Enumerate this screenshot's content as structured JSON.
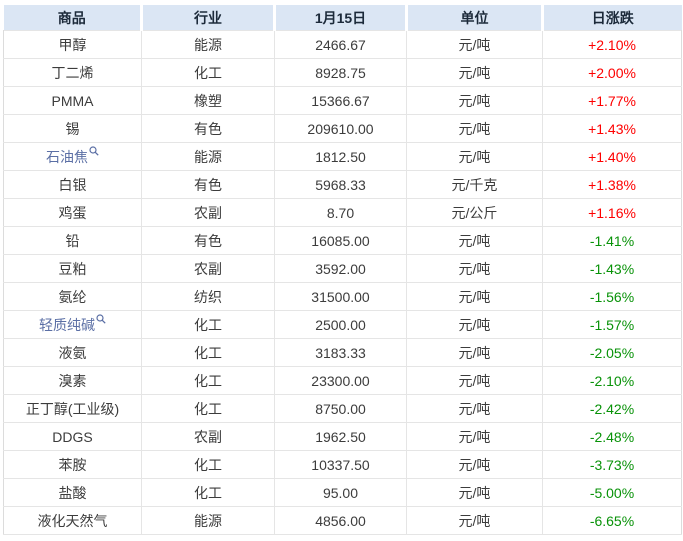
{
  "table": {
    "columns": [
      {
        "label": "商品"
      },
      {
        "label": "行业"
      },
      {
        "label": "1月15日"
      },
      {
        "label": "单位"
      },
      {
        "label": "日涨跌"
      }
    ],
    "rows": [
      {
        "commodity": "甲醇",
        "industry": "能源",
        "price": "2466.67",
        "unit": "元/吨",
        "change": "+2.10%",
        "direction": "up",
        "has_search_icon": false
      },
      {
        "commodity": "丁二烯",
        "industry": "化工",
        "price": "8928.75",
        "unit": "元/吨",
        "change": "+2.00%",
        "direction": "up",
        "has_search_icon": false
      },
      {
        "commodity": "PMMA",
        "industry": "橡塑",
        "price": "15366.67",
        "unit": "元/吨",
        "change": "+1.77%",
        "direction": "up",
        "has_search_icon": false
      },
      {
        "commodity": "锡",
        "industry": "有色",
        "price": "209610.00",
        "unit": "元/吨",
        "change": "+1.43%",
        "direction": "up",
        "has_search_icon": false
      },
      {
        "commodity": "石油焦",
        "industry": "能源",
        "price": "1812.50",
        "unit": "元/吨",
        "change": "+1.40%",
        "direction": "up",
        "has_search_icon": true
      },
      {
        "commodity": "白银",
        "industry": "有色",
        "price": "5968.33",
        "unit": "元/千克",
        "change": "+1.38%",
        "direction": "up",
        "has_search_icon": false
      },
      {
        "commodity": "鸡蛋",
        "industry": "农副",
        "price": "8.70",
        "unit": "元/公斤",
        "change": "+1.16%",
        "direction": "up",
        "has_search_icon": false
      },
      {
        "commodity": "铅",
        "industry": "有色",
        "price": "16085.00",
        "unit": "元/吨",
        "change": "-1.41%",
        "direction": "down",
        "has_search_icon": false
      },
      {
        "commodity": "豆粕",
        "industry": "农副",
        "price": "3592.00",
        "unit": "元/吨",
        "change": "-1.43%",
        "direction": "down",
        "has_search_icon": false
      },
      {
        "commodity": "氨纶",
        "industry": "纺织",
        "price": "31500.00",
        "unit": "元/吨",
        "change": "-1.56%",
        "direction": "down",
        "has_search_icon": false
      },
      {
        "commodity": "轻质纯碱",
        "industry": "化工",
        "price": "2500.00",
        "unit": "元/吨",
        "change": "-1.57%",
        "direction": "down",
        "has_search_icon": true
      },
      {
        "commodity": "液氨",
        "industry": "化工",
        "price": "3183.33",
        "unit": "元/吨",
        "change": "-2.05%",
        "direction": "down",
        "has_search_icon": false
      },
      {
        "commodity": "溴素",
        "industry": "化工",
        "price": "23300.00",
        "unit": "元/吨",
        "change": "-2.10%",
        "direction": "down",
        "has_search_icon": false
      },
      {
        "commodity": "正丁醇(工业级)",
        "industry": "化工",
        "price": "8750.00",
        "unit": "元/吨",
        "change": "-2.42%",
        "direction": "down",
        "has_search_icon": false
      },
      {
        "commodity": "DDGS",
        "industry": "农副",
        "price": "1962.50",
        "unit": "元/吨",
        "change": "-2.48%",
        "direction": "down",
        "has_search_icon": false
      },
      {
        "commodity": "苯胺",
        "industry": "化工",
        "price": "10337.50",
        "unit": "元/吨",
        "change": "-3.73%",
        "direction": "down",
        "has_search_icon": false
      },
      {
        "commodity": "盐酸",
        "industry": "化工",
        "price": "95.00",
        "unit": "元/吨",
        "change": "-5.00%",
        "direction": "down",
        "has_search_icon": false
      },
      {
        "commodity": "液化天然气",
        "industry": "能源",
        "price": "4856.00",
        "unit": "元/吨",
        "change": "-6.65%",
        "direction": "down",
        "has_search_icon": false
      }
    ]
  },
  "colors": {
    "header_bg": "#dbe6f4",
    "up_red": "#fe0000",
    "down_green": "#089208",
    "link_blue": "#5b6fa5"
  },
  "icons": {
    "search": "magnifying-glass"
  }
}
